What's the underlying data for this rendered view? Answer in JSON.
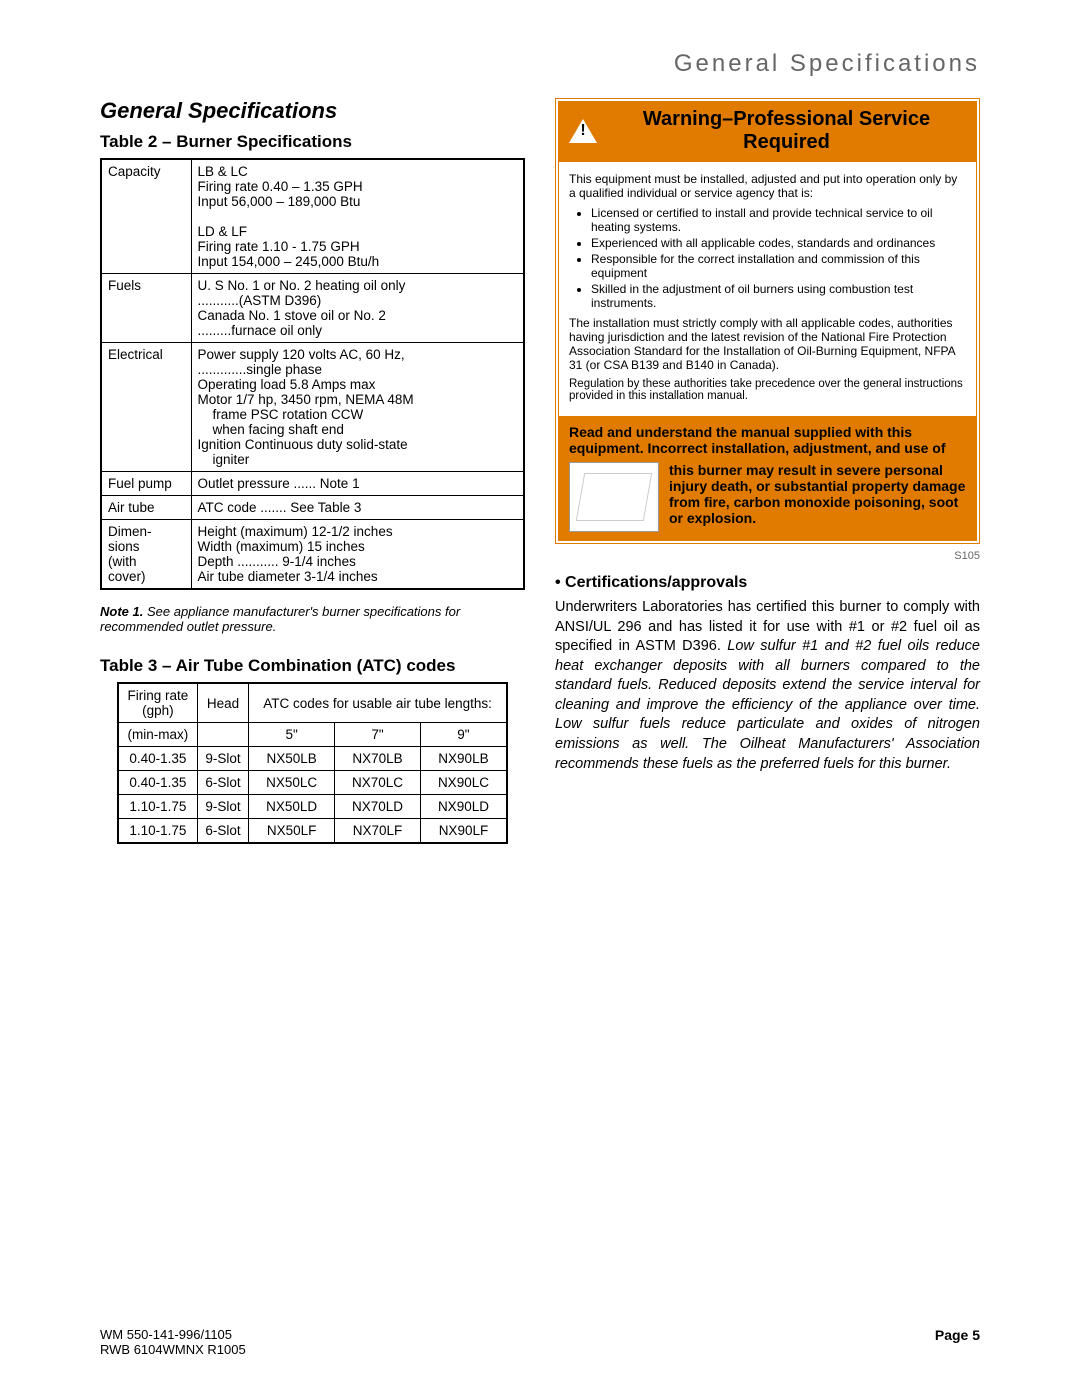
{
  "header": {
    "title": "General Specifications"
  },
  "left": {
    "section_title": "General Specifications",
    "table2": {
      "title": "Table 2 – Burner Specifications",
      "rows": [
        {
          "label": "Capacity",
          "lines": [
            "LB & LC",
            "Firing rate 0.40 – 1.35 GPH",
            "Input 56,000 – 189,000 Btu",
            "",
            "LD & LF",
            "Firing rate 1.10 - 1.75 GPH",
            "Input 154,000 – 245,000 Btu/h"
          ]
        },
        {
          "label": "Fuels",
          "lines": [
            "U. S  No. 1 or No. 2 heating oil only",
            "...........(ASTM D396)",
            "Canada No. 1 stove oil or No. 2",
            ".........furnace oil only"
          ]
        },
        {
          "label": "Electrical",
          "lines": [
            "Power supply 120 volts AC, 60 Hz,",
            ".............single phase",
            "Operating load 5.8 Amps max",
            "Motor 1/7 hp, 3450 rpm, NEMA 48M",
            "        frame PSC rotation CCW",
            "        when facing shaft end",
            "Ignition Continuous duty solid-state",
            "        igniter"
          ]
        },
        {
          "label": "Fuel pump",
          "lines": [
            "Outlet pressure ...... Note 1"
          ]
        },
        {
          "label": "Air tube",
          "lines": [
            "ATC code ....... See Table 3"
          ]
        },
        {
          "label": "Dimen-\nsions\n(with\ncover)",
          "lines": [
            "Height (maximum) 12-1/2 inches",
            "Width (maximum) 15 inches",
            "Depth ........... 9-1/4 inches",
            "Air tube diameter 3-1/4 inches"
          ]
        }
      ]
    },
    "note1": "Note 1.  See appliance manufacturer's burner specifications for recommended outlet pressure.",
    "table3": {
      "title": "Table 3 – Air Tube Combination (ATC) codes",
      "header_row1": [
        "Firing rate (gph)",
        "Head",
        "ATC codes for usable air tube lengths:"
      ],
      "header_row2": [
        "(min-max)",
        "",
        "5\"",
        "7\"",
        "9\""
      ],
      "rows": [
        [
          "0.40-1.35",
          "9-Slot",
          "NX50LB",
          "NX70LB",
          "NX90LB"
        ],
        [
          "0.40-1.35",
          "6-Slot",
          "NX50LC",
          "NX70LC",
          "NX90LC"
        ],
        [
          "1.10-1.75",
          "9-Slot",
          "NX50LD",
          "NX70LD",
          "NX90LD"
        ],
        [
          "1.10-1.75",
          "6-Slot",
          "NX50LF",
          "NX70LF",
          "NX90LF"
        ]
      ]
    }
  },
  "right": {
    "warning": {
      "title": "Warning–Professional Service Required",
      "intro": "This equipment must be installed, adjusted and put into operation only by a qualified individual or service agency that is:",
      "bullets": [
        "Licensed or certified to install and provide technical service to oil heating systems.",
        "Experienced with all applicable codes, standards and ordinances",
        "Responsible for the correct installation and commission of this equipment",
        "Skilled in the adjustment of oil burners using combustion test instruments."
      ],
      "para2": "The installation must strictly comply with all applicable codes, authorities having jurisdiction and the latest revision of the National Fire Protection Association Standard for the Installation of Oil-Burning Equipment, NFPA 31 (or CSA B139 and B140 in Canada).",
      "para3": "Regulation by these authorities take precedence over the general instructions provided in this installation manual.",
      "orange_top": "Read and understand the manual supplied with this equipment. Incorrect installation, adjustment, and use of",
      "orange_side": "this burner may result in severe personal injury death, or substantial property damage from fire, carbon monoxide poisoning, soot or explosion."
    },
    "fig_code": "S105",
    "cert": {
      "heading": "•   Certifications/approvals",
      "body_plain": "Underwriters Laboratories has certified this burner to comply with ANSI/UL 296 and has listed it for use with #1 or #2 fuel oil as specified in ASTM D396. ",
      "body_italic": "Low sulfur #1 and #2 fuel oils reduce heat exchanger deposits with all burners compared to the standard fuels. Reduced deposits extend the service interval for cleaning and improve the efficiency of the appliance over time. Low sulfur fuels reduce particulate and oxides of nitrogen emissions as well. The Oilheat Manufacturers' Association recommends these fuels as the preferred fuels for this burner."
    }
  },
  "footer": {
    "left_line1": "WM  550-141-996/1105",
    "left_line2": "RWB 6104WMNX R1005",
    "right": "Page 5"
  },
  "colors": {
    "orange": "#e07b00",
    "header_gray": "#666666"
  }
}
